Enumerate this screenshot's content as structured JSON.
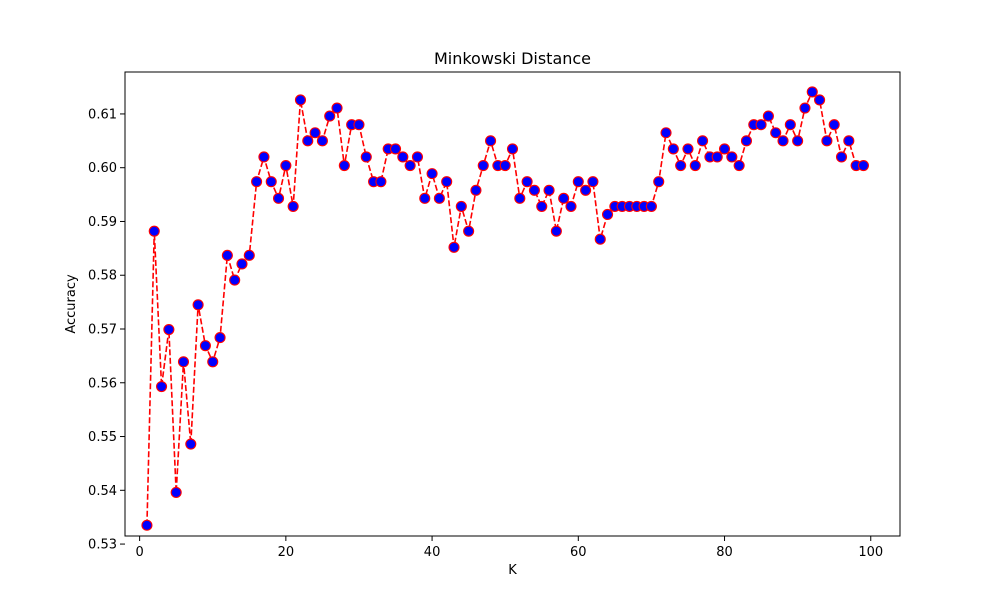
{
  "colors": {
    "line": "#ff0000",
    "marker_fill": "#0000ff",
    "marker_edge": "#ff0000",
    "axes": "#000000",
    "background": "#ffffff"
  },
  "chart_data": {
    "type": "line",
    "title": "Minkowski Distance",
    "xlabel": "K",
    "ylabel": "Accuracy",
    "xlim": [
      -2,
      104
    ],
    "ylim": [
      0.5315,
      0.6178
    ],
    "xticks": [
      0,
      20,
      40,
      60,
      80,
      100
    ],
    "yticks": [
      0.53,
      0.54,
      0.55,
      0.56,
      0.57,
      0.58,
      0.59,
      0.6,
      0.61
    ],
    "xtick_labels": [
      "0",
      "20",
      "40",
      "60",
      "80",
      "100"
    ],
    "ytick_labels": [
      "0.53",
      "0.54",
      "0.55",
      "0.56",
      "0.57",
      "0.58",
      "0.59",
      "0.60",
      "0.61"
    ],
    "grid": false,
    "line_style": "dashed",
    "marker": "circle",
    "series": [
      {
        "x": [
          1,
          2,
          3,
          4,
          5,
          6,
          7,
          8,
          9,
          10,
          11,
          12,
          13,
          14,
          15,
          16,
          17,
          18,
          19,
          20,
          21,
          22,
          23,
          24,
          25,
          26,
          27,
          28,
          29,
          30,
          31,
          32,
          33,
          34,
          35,
          36,
          37,
          38,
          39,
          40,
          41,
          42,
          43,
          44,
          45,
          46,
          47,
          48,
          49,
          50,
          51,
          52,
          53,
          54,
          55,
          56,
          57,
          58,
          59,
          60,
          61,
          62,
          63,
          64,
          65,
          66,
          67,
          68,
          69,
          70,
          71,
          72,
          73,
          74,
          75,
          76,
          77,
          78,
          79,
          80,
          81,
          82,
          83,
          84,
          85,
          86,
          87,
          88,
          89,
          90,
          91,
          92,
          93,
          94,
          95,
          96,
          97,
          98,
          99
        ],
        "values": [
          0.5335,
          0.5882,
          0.5593,
          0.5699,
          0.5396,
          0.5639,
          0.5486,
          0.5745,
          0.5669,
          0.5639,
          0.5684,
          0.5837,
          0.5791,
          0.5821,
          0.5837,
          0.5974,
          0.602,
          0.5974,
          0.5943,
          0.6004,
          0.5928,
          0.6126,
          0.605,
          0.6065,
          0.605,
          0.6096,
          0.6111,
          0.6004,
          0.608,
          0.608,
          0.602,
          0.5974,
          0.5974,
          0.6035,
          0.6035,
          0.602,
          0.6004,
          0.602,
          0.5943,
          0.5989,
          0.5943,
          0.5974,
          0.5852,
          0.5928,
          0.5882,
          0.5958,
          0.6004,
          0.605,
          0.6004,
          0.6004,
          0.6035,
          0.5943,
          0.5974,
          0.5958,
          0.5928,
          0.5958,
          0.5882,
          0.5943,
          0.5928,
          0.5974,
          0.5958,
          0.5974,
          0.5867,
          0.5913,
          0.5928,
          0.5928,
          0.5928,
          0.5928,
          0.5928,
          0.5928,
          0.5974,
          0.6065,
          0.6035,
          0.6004,
          0.6035,
          0.6004,
          0.605,
          0.602,
          0.602,
          0.6035,
          0.602,
          0.6004,
          0.605,
          0.608,
          0.608,
          0.6096,
          0.6065,
          0.605,
          0.608,
          0.605,
          0.6111,
          0.6141,
          0.6126,
          0.605,
          0.608,
          0.602,
          0.605,
          0.6004,
          0.6004
        ]
      }
    ]
  }
}
